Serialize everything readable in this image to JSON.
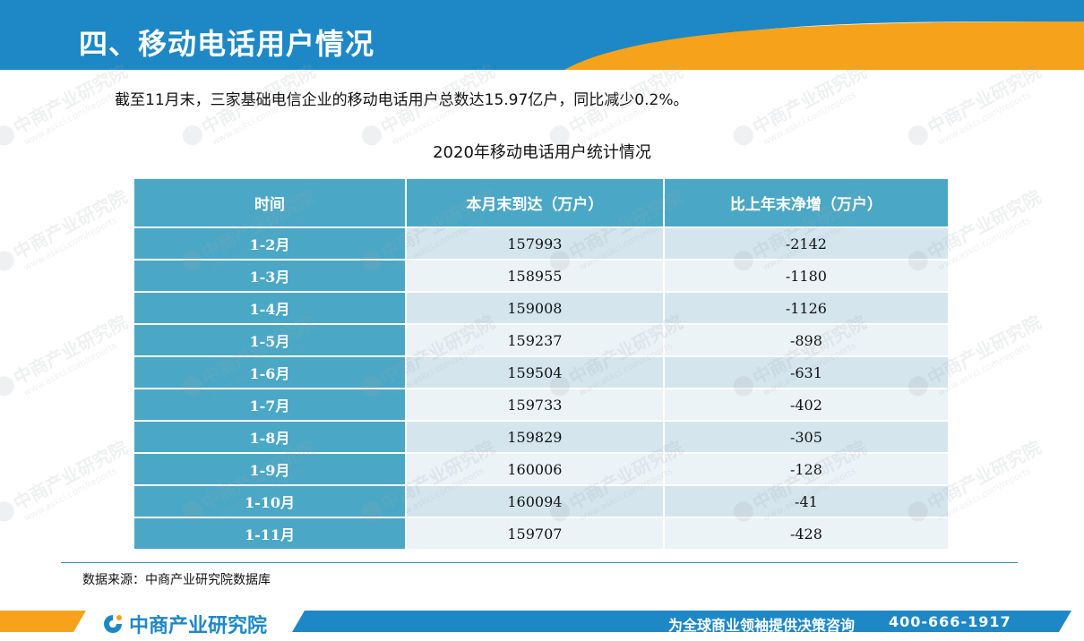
{
  "header": {
    "title": "四、移动电话用户情况"
  },
  "intro": "截至11月末，三家基础电信企业的移动电话用户总数达15.97亿户，同比减少0.2%。",
  "table": {
    "title": "2020年移动电话用户统计情况",
    "columns": [
      "时间",
      "本月末到达（万户）",
      "比上年末净增（万户）"
    ],
    "rows": [
      {
        "period": "1-2月",
        "total": "157993",
        "net": "-2142"
      },
      {
        "period": "1-3月",
        "total": "158955",
        "net": "-1180"
      },
      {
        "period": "1-4月",
        "total": "159008",
        "net": "-1126"
      },
      {
        "period": "1-5月",
        "total": "159237",
        "net": "-898"
      },
      {
        "period": "1-6月",
        "total": "159504",
        "net": "-631"
      },
      {
        "period": "1-7月",
        "total": "159733",
        "net": "-402"
      },
      {
        "period": "1-8月",
        "total": "159829",
        "net": "-305"
      },
      {
        "period": "1-9月",
        "total": "160006",
        "net": "-128"
      },
      {
        "period": "1-10月",
        "total": "160094",
        "net": "-41"
      },
      {
        "period": "1-11月",
        "total": "159707",
        "net": "-428"
      }
    ]
  },
  "source": "数据来源：中商产业研究院数据库",
  "footer": {
    "logo_text": "中商产业研究院",
    "slogan": "为全球商业领袖提供决策咨询",
    "phone": "400-666-1917"
  },
  "watermark": {
    "name": "中商产业研究院",
    "url": "www.askci.com/reports"
  },
  "colors": {
    "header_blue": "#1e88c7",
    "header_orange": "#f7a21b",
    "table_header": "#4aa8c6",
    "row_odd": "#d4e5ee",
    "row_even": "#ebf3f7"
  }
}
